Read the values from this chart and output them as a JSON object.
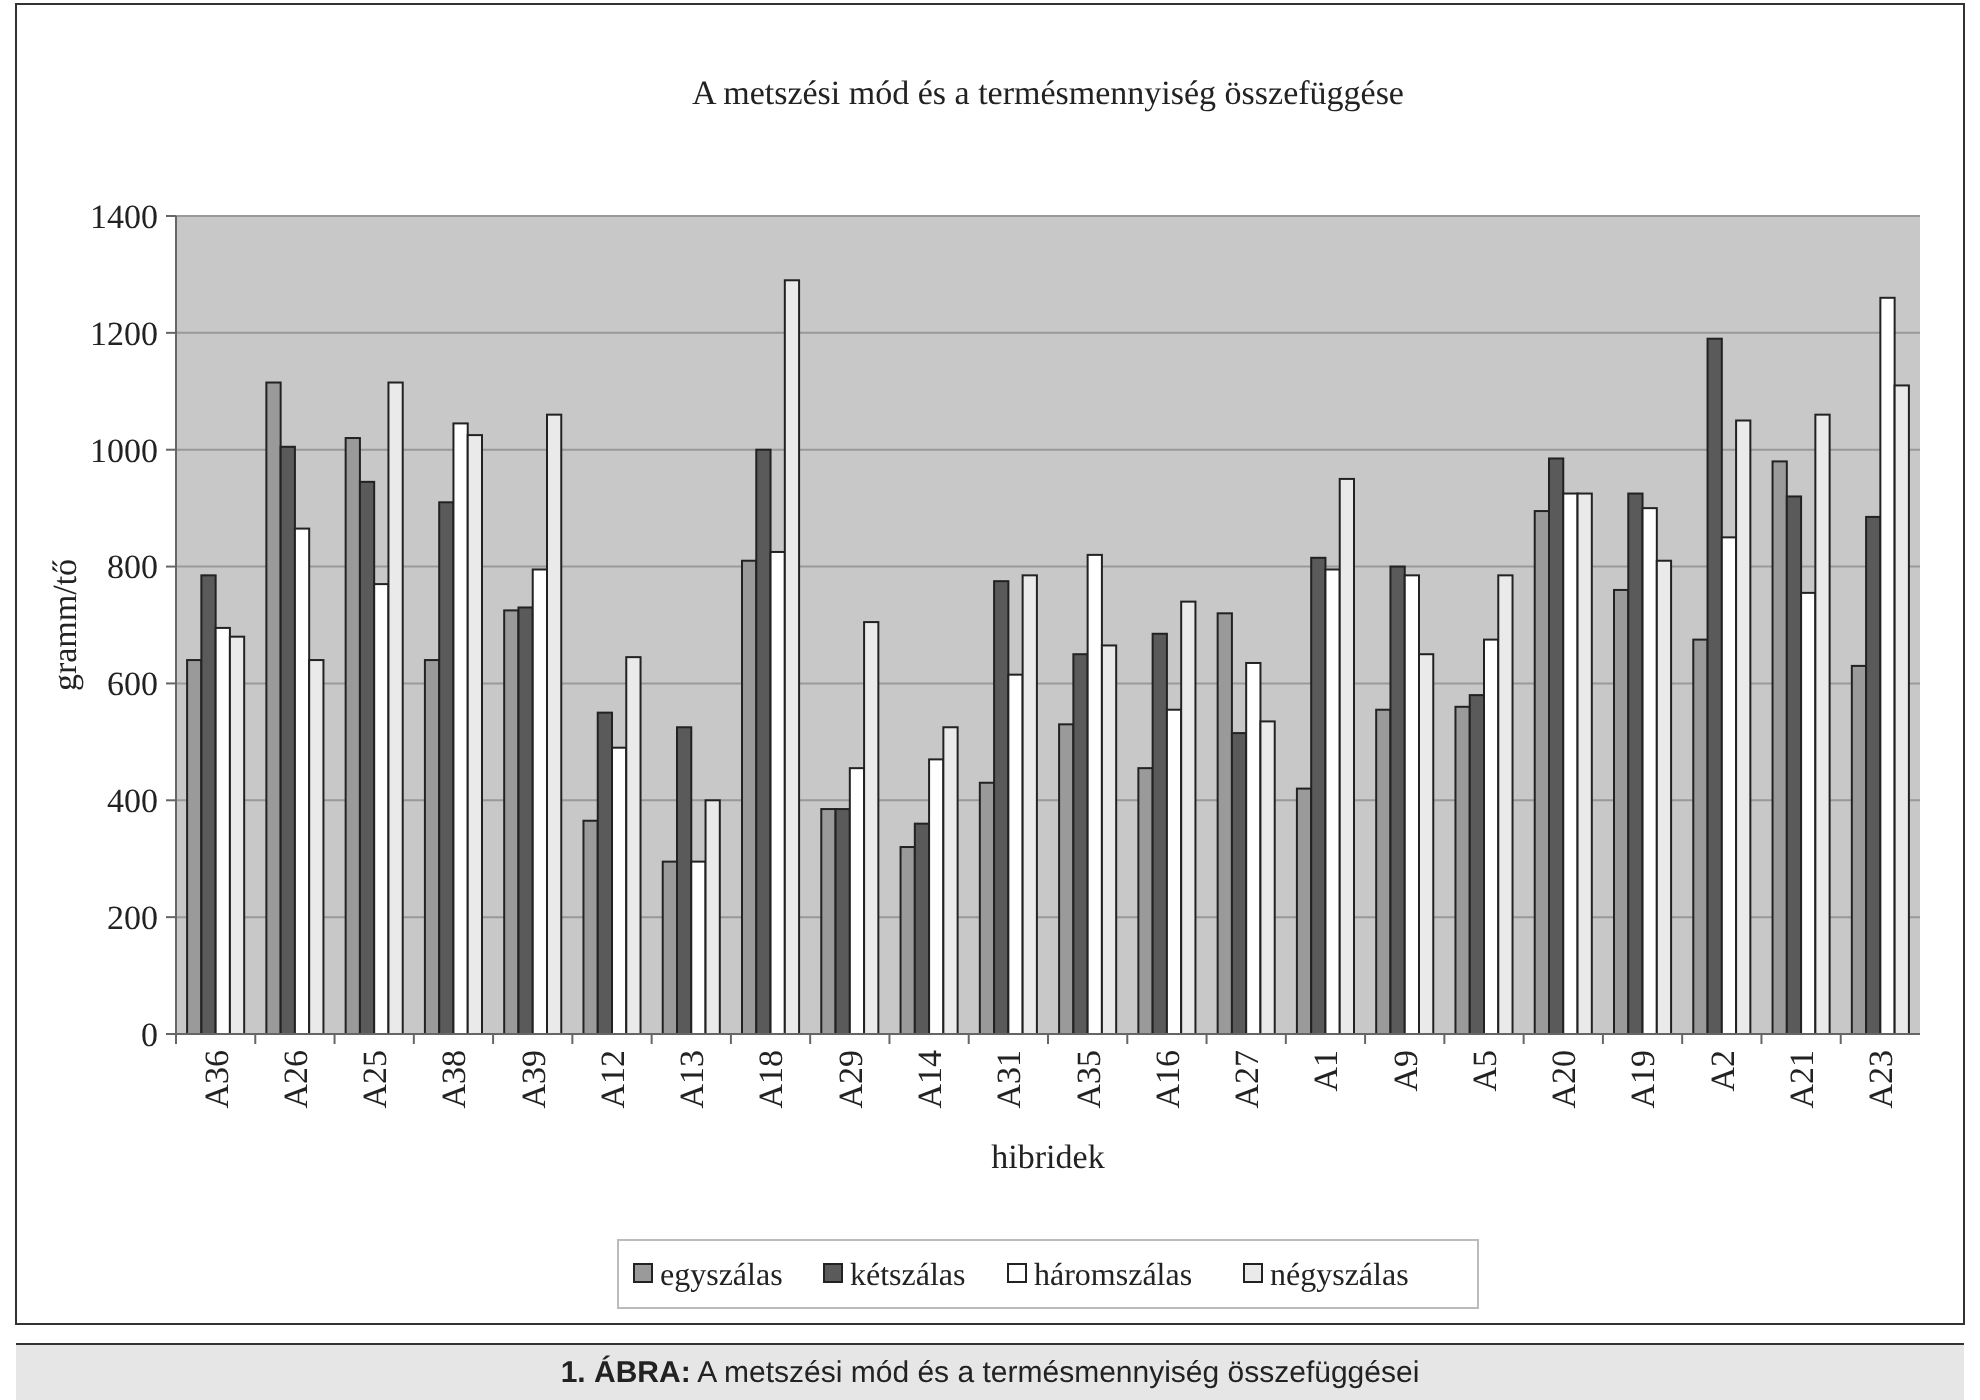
{
  "chart_data": {
    "type": "bar",
    "title": "A metszési mód és a termésmennyiség összefüggése",
    "xlabel": "hibridek",
    "ylabel": "gramm/tő",
    "annotations": [
      "1. ÁBRA: A metszési mód és a termésmennyiség összefüggései"
    ],
    "categories": [
      "A36",
      "A26",
      "A25",
      "A38",
      "A39",
      "A12",
      "A13",
      "A18",
      "A29",
      "A14",
      "A31",
      "A35",
      "A16",
      "A27",
      "A1",
      "A9",
      "A5",
      "A20",
      "A19",
      "A2",
      "A21",
      "A23"
    ],
    "series": [
      {
        "name": "egyszálas",
        "color": "#9a9a9a",
        "values": [
          640,
          1115,
          1020,
          640,
          725,
          365,
          295,
          810,
          385,
          320,
          430,
          530,
          455,
          720,
          420,
          555,
          560,
          895,
          760,
          675,
          980,
          630
        ]
      },
      {
        "name": "kétszálas",
        "color": "#5a5a5a",
        "values": [
          785,
          1005,
          945,
          910,
          730,
          550,
          525,
          1000,
          385,
          360,
          775,
          650,
          685,
          515,
          815,
          800,
          580,
          985,
          925,
          1190,
          920,
          885
        ]
      },
      {
        "name": "háromszálas",
        "color": "#ffffff",
        "values": [
          695,
          865,
          770,
          1045,
          795,
          490,
          295,
          825,
          455,
          470,
          615,
          820,
          555,
          635,
          795,
          785,
          675,
          925,
          900,
          850,
          755,
          1260
        ]
      },
      {
        "name": "négyszálas",
        "color": "#eaeaea",
        "values": [
          680,
          640,
          1115,
          1025,
          1060,
          645,
          400,
          1290,
          705,
          525,
          785,
          665,
          740,
          535,
          950,
          650,
          785,
          925,
          810,
          1050,
          1060,
          1110
        ]
      }
    ],
    "ylim": [
      0,
      1400
    ],
    "yticks": [
      0,
      200,
      400,
      600,
      800,
      1000,
      1200,
      1400
    ],
    "grid": "y",
    "legend": "bottom"
  }
}
